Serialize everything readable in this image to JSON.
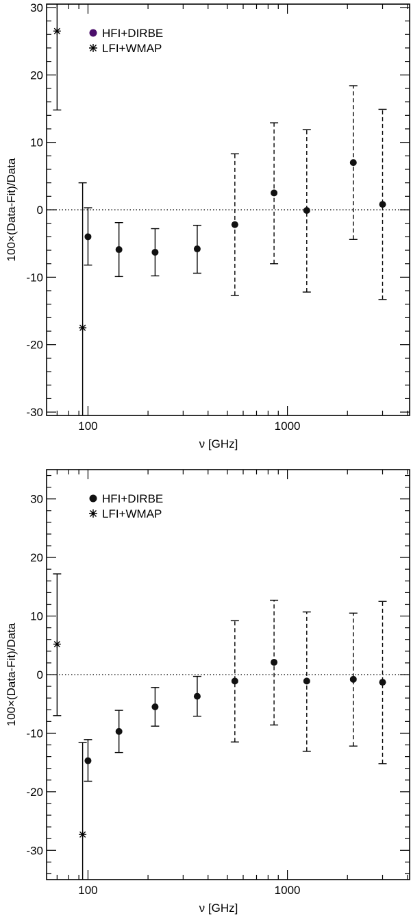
{
  "chart_data": [
    {
      "type": "scatter",
      "title": "",
      "xlabel": "ν [GHz]",
      "ylabel": "100×(Data-Fit)/Data",
      "xscale": "log",
      "xlim": [
        62,
        4100
      ],
      "ylim": [
        -30.5,
        30.5
      ],
      "xticks": [
        {
          "value": 100,
          "label": "100"
        },
        {
          "value": 1000,
          "label": "1000"
        }
      ],
      "yticks": [
        {
          "value": -30,
          "label": "-30"
        },
        {
          "value": -20,
          "label": "-20"
        },
        {
          "value": -10,
          "label": "-10"
        },
        {
          "value": 0,
          "label": "0"
        },
        {
          "value": 10,
          "label": "10"
        },
        {
          "value": 20,
          "label": "20"
        },
        {
          "value": 30,
          "label": "30"
        }
      ],
      "reference_line": {
        "y": 0,
        "style": "dotted"
      },
      "legend": {
        "placement": "top-left",
        "entries": [
          {
            "label": "HFI+DIRBE",
            "marker": "dot",
            "color": "#4b0f6b"
          },
          {
            "label": "LFI+WMAP",
            "marker": "asterisk",
            "color": "#000000"
          }
        ]
      },
      "series": [
        {
          "name": "LFI+WMAP",
          "marker": "asterisk",
          "points": [
            {
              "x": 70,
              "y": 26.5,
              "err_low": 14.8,
              "err_high": 31.5,
              "err_style": "solid"
            },
            {
              "x": 94,
              "y": -17.5,
              "err_low": -31,
              "err_high": 4.0,
              "err_style": "solid"
            }
          ]
        },
        {
          "name": "HFI+DIRBE",
          "marker": "dot",
          "points": [
            {
              "x": 100,
              "y": -4.0,
              "err_low": -8.2,
              "err_high": 0.3,
              "err_style": "solid"
            },
            {
              "x": 143,
              "y": -5.9,
              "err_low": -9.9,
              "err_high": -1.9,
              "err_style": "solid"
            },
            {
              "x": 217,
              "y": -6.3,
              "err_low": -9.8,
              "err_high": -2.8,
              "err_style": "solid"
            },
            {
              "x": 353,
              "y": -5.8,
              "err_low": -9.4,
              "err_high": -2.3,
              "err_style": "solid"
            },
            {
              "x": 545,
              "y": -2.2,
              "err_low": -12.7,
              "err_high": 8.3,
              "err_style": "dashed"
            },
            {
              "x": 857,
              "y": 2.5,
              "err_low": -8.0,
              "err_high": 12.9,
              "err_style": "dashed"
            },
            {
              "x": 1250,
              "y": -0.1,
              "err_low": -12.2,
              "err_high": 11.9,
              "err_style": "dashed"
            },
            {
              "x": 2140,
              "y": 7.0,
              "err_low": -4.4,
              "err_high": 18.4,
              "err_style": "dashed"
            },
            {
              "x": 3000,
              "y": 0.8,
              "err_low": -13.3,
              "err_high": 14.9,
              "err_style": "dashed"
            }
          ]
        }
      ]
    },
    {
      "type": "scatter",
      "title": "",
      "xlabel": "ν [GHz]",
      "ylabel": "100×(Data-Fit)/Data",
      "xscale": "log",
      "xlim": [
        62,
        4100
      ],
      "ylim": [
        -35,
        35
      ],
      "xticks": [
        {
          "value": 100,
          "label": "100"
        },
        {
          "value": 1000,
          "label": "1000"
        }
      ],
      "yticks": [
        {
          "value": -30,
          "label": "-30"
        },
        {
          "value": -20,
          "label": "-20"
        },
        {
          "value": -10,
          "label": "-10"
        },
        {
          "value": 0,
          "label": "0"
        },
        {
          "value": 10,
          "label": "10"
        },
        {
          "value": 20,
          "label": "20"
        },
        {
          "value": 30,
          "label": "30"
        }
      ],
      "reference_line": {
        "y": 0,
        "style": "dotted"
      },
      "legend": {
        "placement": "top-left",
        "entries": [
          {
            "label": "HFI+DIRBE",
            "marker": "dot",
            "color": "#111111"
          },
          {
            "label": "LFI+WMAP",
            "marker": "asterisk",
            "color": "#000000"
          }
        ]
      },
      "series": [
        {
          "name": "LFI+WMAP",
          "marker": "asterisk",
          "points": [
            {
              "x": 70,
              "y": 5.2,
              "err_low": -7.0,
              "err_high": 17.2,
              "err_style": "solid"
            },
            {
              "x": 94,
              "y": -27.3,
              "err_low": -36,
              "err_high": -11.6,
              "err_style": "solid"
            }
          ]
        },
        {
          "name": "HFI+DIRBE",
          "marker": "dot",
          "points": [
            {
              "x": 100,
              "y": -14.7,
              "err_low": -18.2,
              "err_high": -11.1,
              "err_style": "solid"
            },
            {
              "x": 143,
              "y": -9.7,
              "err_low": -13.3,
              "err_high": -6.1,
              "err_style": "solid"
            },
            {
              "x": 217,
              "y": -5.5,
              "err_low": -8.8,
              "err_high": -2.2,
              "err_style": "solid"
            },
            {
              "x": 353,
              "y": -3.7,
              "err_low": -7.1,
              "err_high": -0.3,
              "err_style": "solid"
            },
            {
              "x": 545,
              "y": -1.1,
              "err_low": -11.5,
              "err_high": 9.2,
              "err_style": "dashed"
            },
            {
              "x": 857,
              "y": 2.1,
              "err_low": -8.6,
              "err_high": 12.7,
              "err_style": "dashed"
            },
            {
              "x": 1250,
              "y": -1.1,
              "err_low": -13.1,
              "err_high": 10.7,
              "err_style": "dashed"
            },
            {
              "x": 2140,
              "y": -0.8,
              "err_low": -12.2,
              "err_high": 10.5,
              "err_style": "dashed"
            },
            {
              "x": 3000,
              "y": -1.3,
              "err_low": -15.2,
              "err_high": 12.5,
              "err_style": "dashed"
            }
          ]
        }
      ]
    }
  ]
}
